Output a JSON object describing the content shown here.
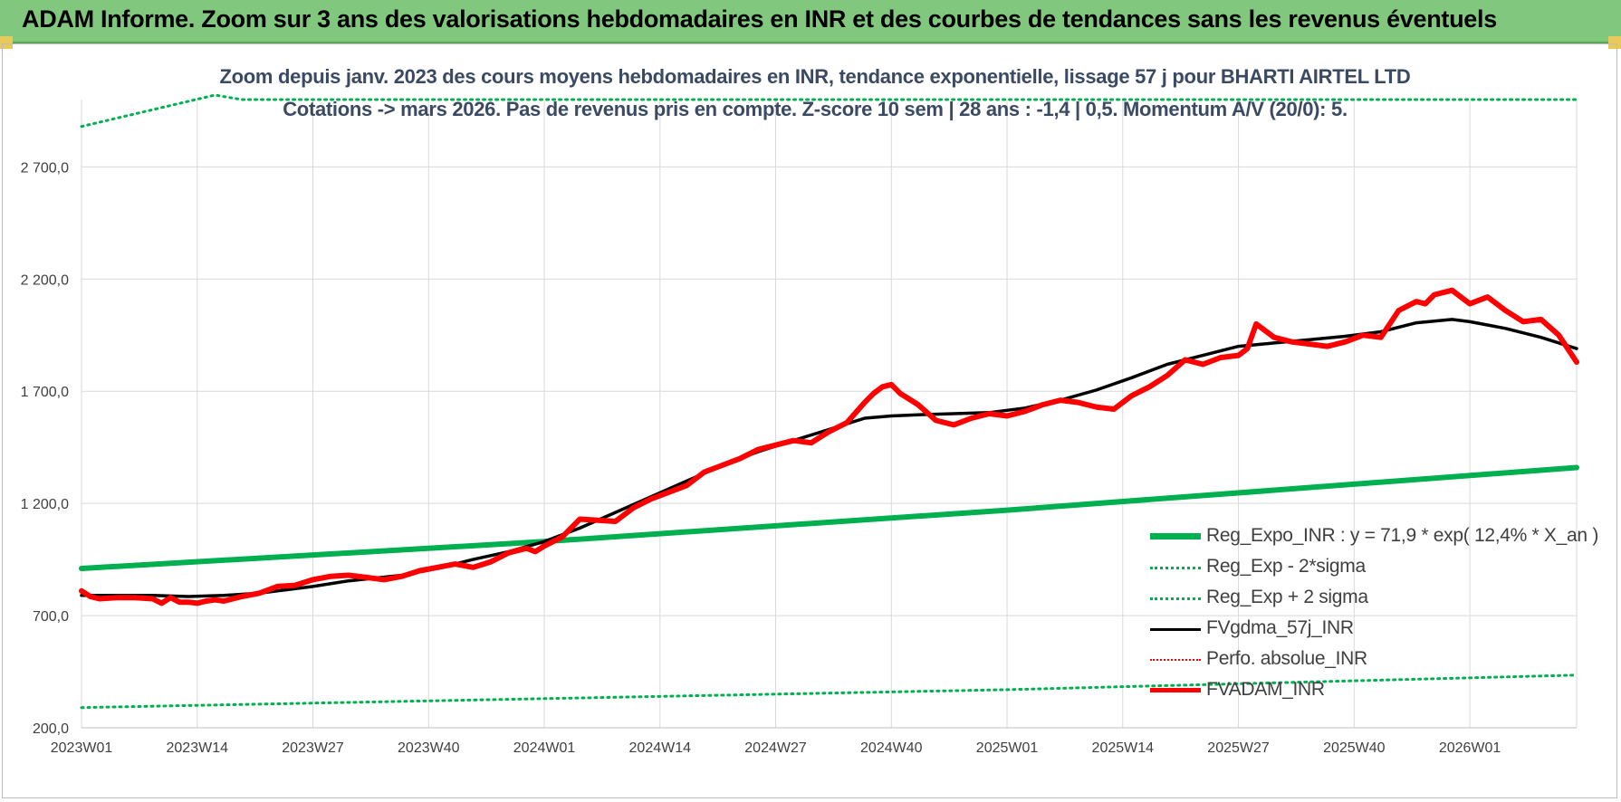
{
  "header": {
    "title": "ADAM Informe. Zoom sur 3 ans des valorisations hebdomadaires en INR et des courbes de tendances sans les revenus éventuels"
  },
  "chart_data": {
    "type": "line",
    "title": "Zoom depuis janv. 2023 des cours moyens hebdomadaires en INR, tendance exponentielle, lissage 57 j pour BHARTI AIRTEL LTD",
    "subtitle": "Cotations -> mars 2026. Pas de revenus pris en compte. Z-score 10 sem | 28 ans : -1,4 | 0,5. Momentum A/V (20/0): 5.",
    "xlabel": "",
    "ylabel": "",
    "ylim": [
      200,
      3000
    ],
    "yticks": [
      "200,0",
      "700,0",
      "1 200,0",
      "1 700,0",
      "2 200,0",
      "2 700,0"
    ],
    "ytick_values": [
      200,
      700,
      1200,
      1700,
      2200,
      2700
    ],
    "xticks": [
      "2023W01",
      "2023W14",
      "2023W27",
      "2023W40",
      "2024W01",
      "2024W14",
      "2024W27",
      "2024W40",
      "2025W01",
      "2025W14",
      "2025W27",
      "2025W40",
      "2026W01"
    ],
    "xtick_index": [
      0,
      13,
      26,
      39,
      52,
      65,
      78,
      91,
      104,
      117,
      130,
      143,
      156
    ],
    "x_count": 169,
    "grid": true,
    "legend_position": "bottom-right",
    "series": [
      {
        "name": "Reg_Expo_INR : y = 71,9 * exp( 12,4% *  X_an )",
        "color": "#00b050",
        "style": "solid-thick",
        "x": [
          0,
          52,
          104,
          168
        ],
        "values": [
          910,
          1030,
          1170,
          1360
        ]
      },
      {
        "name": "Reg_Exp - 2*sigma",
        "color": "#00b050",
        "style": "dotted",
        "x": [
          0,
          52,
          104,
          168
        ],
        "values": [
          290,
          330,
          370,
          435
        ]
      },
      {
        "name": "Reg_Exp + 2 sigma",
        "color": "#00b050",
        "style": "dotted",
        "x": [
          0,
          15,
          18,
          147,
          168
        ],
        "values": [
          2880,
          3020,
          3000,
          3000,
          3000
        ]
      },
      {
        "name": "FVgdma_57j_INR",
        "color": "#000000",
        "style": "solid",
        "x": [
          0,
          8,
          12,
          16,
          20,
          26,
          30,
          36,
          40,
          44,
          48,
          52,
          56,
          60,
          64,
          68,
          72,
          76,
          80,
          84,
          88,
          91,
          94,
          98,
          102,
          106,
          110,
          114,
          118,
          122,
          126,
          130,
          134,
          138,
          142,
          146,
          150,
          154,
          156,
          160,
          164,
          168
        ],
        "values": [
          790,
          790,
          785,
          790,
          800,
          830,
          855,
          880,
          910,
          950,
          985,
          1030,
          1090,
          1160,
          1230,
          1300,
          1370,
          1430,
          1480,
          1530,
          1580,
          1590,
          1595,
          1600,
          1605,
          1625,
          1660,
          1705,
          1760,
          1820,
          1860,
          1900,
          1915,
          1930,
          1945,
          1965,
          2005,
          2020,
          2010,
          1980,
          1940,
          1890
        ]
      },
      {
        "name": "Perfo. absolue_INR",
        "color": "#ff0000",
        "style": "dotted",
        "x": [],
        "values": []
      },
      {
        "name": "FVADAM_INR",
        "color": "#ff0000",
        "style": "solid-thick",
        "x": [
          0,
          1,
          2,
          4,
          6,
          8,
          9,
          10,
          11,
          12,
          13,
          14,
          15,
          16,
          18,
          20,
          22,
          24,
          26,
          28,
          30,
          32,
          34,
          36,
          38,
          40,
          42,
          44,
          46,
          48,
          50,
          51,
          52,
          54,
          56,
          58,
          60,
          62,
          64,
          66,
          68,
          70,
          72,
          74,
          76,
          78,
          80,
          82,
          84,
          86,
          88,
          89,
          90,
          91,
          92,
          94,
          96,
          98,
          100,
          102,
          104,
          106,
          108,
          110,
          112,
          114,
          116,
          118,
          120,
          122,
          124,
          126,
          128,
          130,
          131,
          132,
          134,
          136,
          138,
          140,
          142,
          144,
          146,
          148,
          150,
          151,
          152,
          154,
          156,
          158,
          160,
          162,
          164,
          166,
          168
        ],
        "values": [
          810,
          785,
          775,
          780,
          780,
          775,
          755,
          780,
          760,
          760,
          755,
          765,
          770,
          765,
          785,
          800,
          830,
          835,
          860,
          875,
          880,
          870,
          860,
          875,
          900,
          915,
          930,
          915,
          940,
          980,
          1000,
          985,
          1010,
          1050,
          1130,
          1125,
          1120,
          1180,
          1220,
          1250,
          1280,
          1340,
          1370,
          1400,
          1440,
          1460,
          1480,
          1470,
          1520,
          1560,
          1650,
          1690,
          1720,
          1730,
          1690,
          1640,
          1570,
          1550,
          1580,
          1600,
          1590,
          1610,
          1640,
          1660,
          1650,
          1630,
          1620,
          1680,
          1720,
          1770,
          1840,
          1820,
          1850,
          1860,
          1890,
          2000,
          1940,
          1920,
          1910,
          1900,
          1920,
          1950,
          1940,
          2060,
          2100,
          2090,
          2130,
          2150,
          2090,
          2120,
          2060,
          2010,
          2020,
          1950,
          1830
        ]
      }
    ]
  }
}
